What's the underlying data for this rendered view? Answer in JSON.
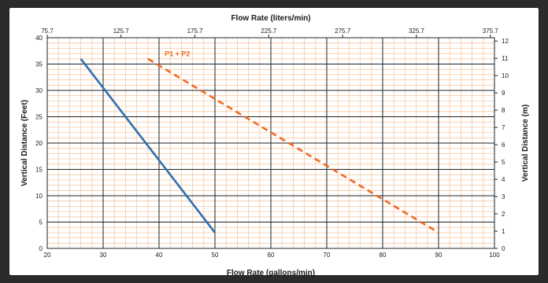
{
  "chart_data": {
    "type": "line",
    "title": "",
    "xlabel": "Flow Rate (gallons/min)",
    "ylabel": "Vertical Distance (Feet)",
    "x2label": "Flow Rate (liters/min)",
    "y2label": "Vertical Distance (m)",
    "xlim": [
      20,
      100
    ],
    "ylim": [
      0,
      40
    ],
    "x_ticks": [
      20,
      30,
      40,
      50,
      60,
      70,
      80,
      90,
      100
    ],
    "y_ticks": [
      0,
      5,
      10,
      15,
      20,
      25,
      30,
      35,
      40
    ],
    "x2_ticks": [
      "75.7",
      "125.7",
      "175.7",
      "225.7",
      "275.7",
      "325.7",
      "375.7"
    ],
    "x2_tick_positions_gpm": [
      20,
      33.2,
      46.42,
      59.63,
      72.84,
      86.05,
      99.26
    ],
    "y2_ticks": [
      0,
      1,
      2,
      3,
      4,
      5,
      6,
      7,
      8,
      9,
      10,
      11,
      12
    ],
    "y2_tick_positions_ft": [
      0,
      3.28,
      6.56,
      9.84,
      13.12,
      16.4,
      19.69,
      22.97,
      26.25,
      29.53,
      32.81,
      36.09,
      39.37
    ],
    "grid": true,
    "series": [
      {
        "name": "",
        "color": "#2e6fb0",
        "style": "solid",
        "x": [
          26,
          50
        ],
        "y": [
          36,
          3
        ]
      },
      {
        "name": "P1 + P2",
        "color": "#f06a23",
        "style": "dashed",
        "x": [
          38,
          90
        ],
        "y": [
          36,
          3
        ]
      }
    ],
    "annotations": [
      {
        "text": "P1 + P2",
        "x": 41,
        "y": 36.5,
        "color": "#f06a23"
      }
    ]
  }
}
